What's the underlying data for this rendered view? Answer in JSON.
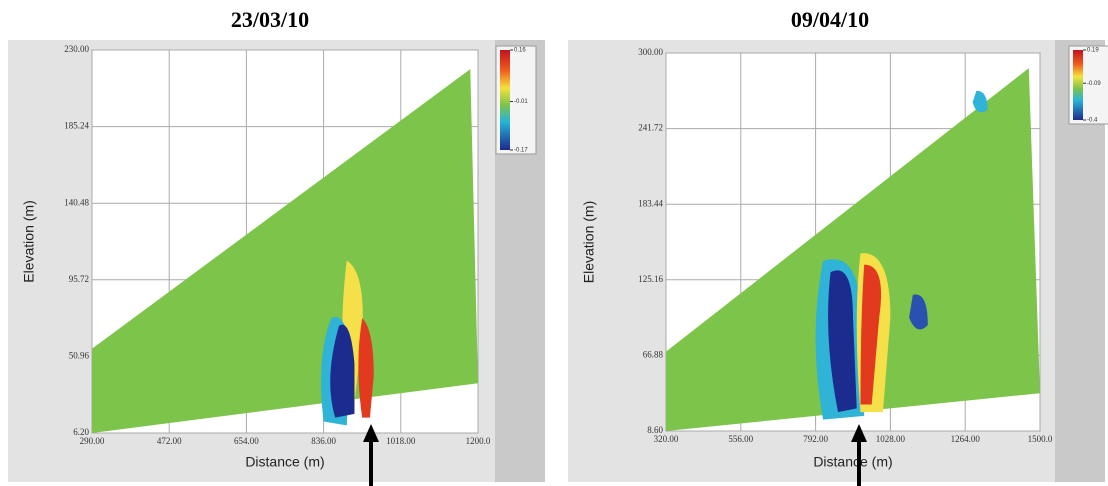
{
  "chart_data": [
    {
      "type": "contour",
      "title": "23/03/10",
      "x_label": "Distance (m)",
      "y_label": "Elevation (m)",
      "xlim": [
        290,
        1200
      ],
      "xticks": [
        {
          "value": 290,
          "label": "290.00"
        },
        {
          "value": 472,
          "label": "472.00"
        },
        {
          "value": 654,
          "label": "654.00"
        },
        {
          "value": 836,
          "label": "836.00"
        },
        {
          "value": 1018,
          "label": "1018.00"
        },
        {
          "value": 1200,
          "label": "1200.0"
        }
      ],
      "ylim": [
        6.2,
        230
      ],
      "yticks": [
        {
          "value": 6.2,
          "label": "6.20"
        },
        {
          "value": 50.96,
          "label": "50.96"
        },
        {
          "value": 95.72,
          "label": "95.72"
        },
        {
          "value": 140.48,
          "label": "140.48"
        },
        {
          "value": 185.24,
          "label": "185.24"
        },
        {
          "value": 230,
          "label": "230.00"
        }
      ],
      "colorbar_ticks": [
        0.16,
        -0.01,
        -0.17
      ],
      "grid": true
    },
    {
      "type": "contour",
      "title": "09/04/10",
      "x_label": "Distance (m)",
      "y_label": "Elevation (m)",
      "xlim": [
        320,
        1500
      ],
      "xticks": [
        {
          "value": 320,
          "label": "320.00"
        },
        {
          "value": 556,
          "label": "556.00"
        },
        {
          "value": 792,
          "label": "792.00"
        },
        {
          "value": 1028,
          "label": "1028.00"
        },
        {
          "value": 1264,
          "label": "1264.00"
        },
        {
          "value": 1500,
          "label": "1500.0"
        }
      ],
      "ylim": [
        8.6,
        300
      ],
      "yticks": [
        {
          "value": 8.6,
          "label": "8.60"
        },
        {
          "value": 66.88,
          "label": "66.88"
        },
        {
          "value": 125.16,
          "label": "125.16"
        },
        {
          "value": 183.44,
          "label": "183.44"
        },
        {
          "value": 241.72,
          "label": "241.72"
        },
        {
          "value": 300,
          "label": "300.00"
        }
      ],
      "colorbar_ticks": [
        0.19,
        -0.09,
        -0.4
      ],
      "grid": true
    }
  ]
}
